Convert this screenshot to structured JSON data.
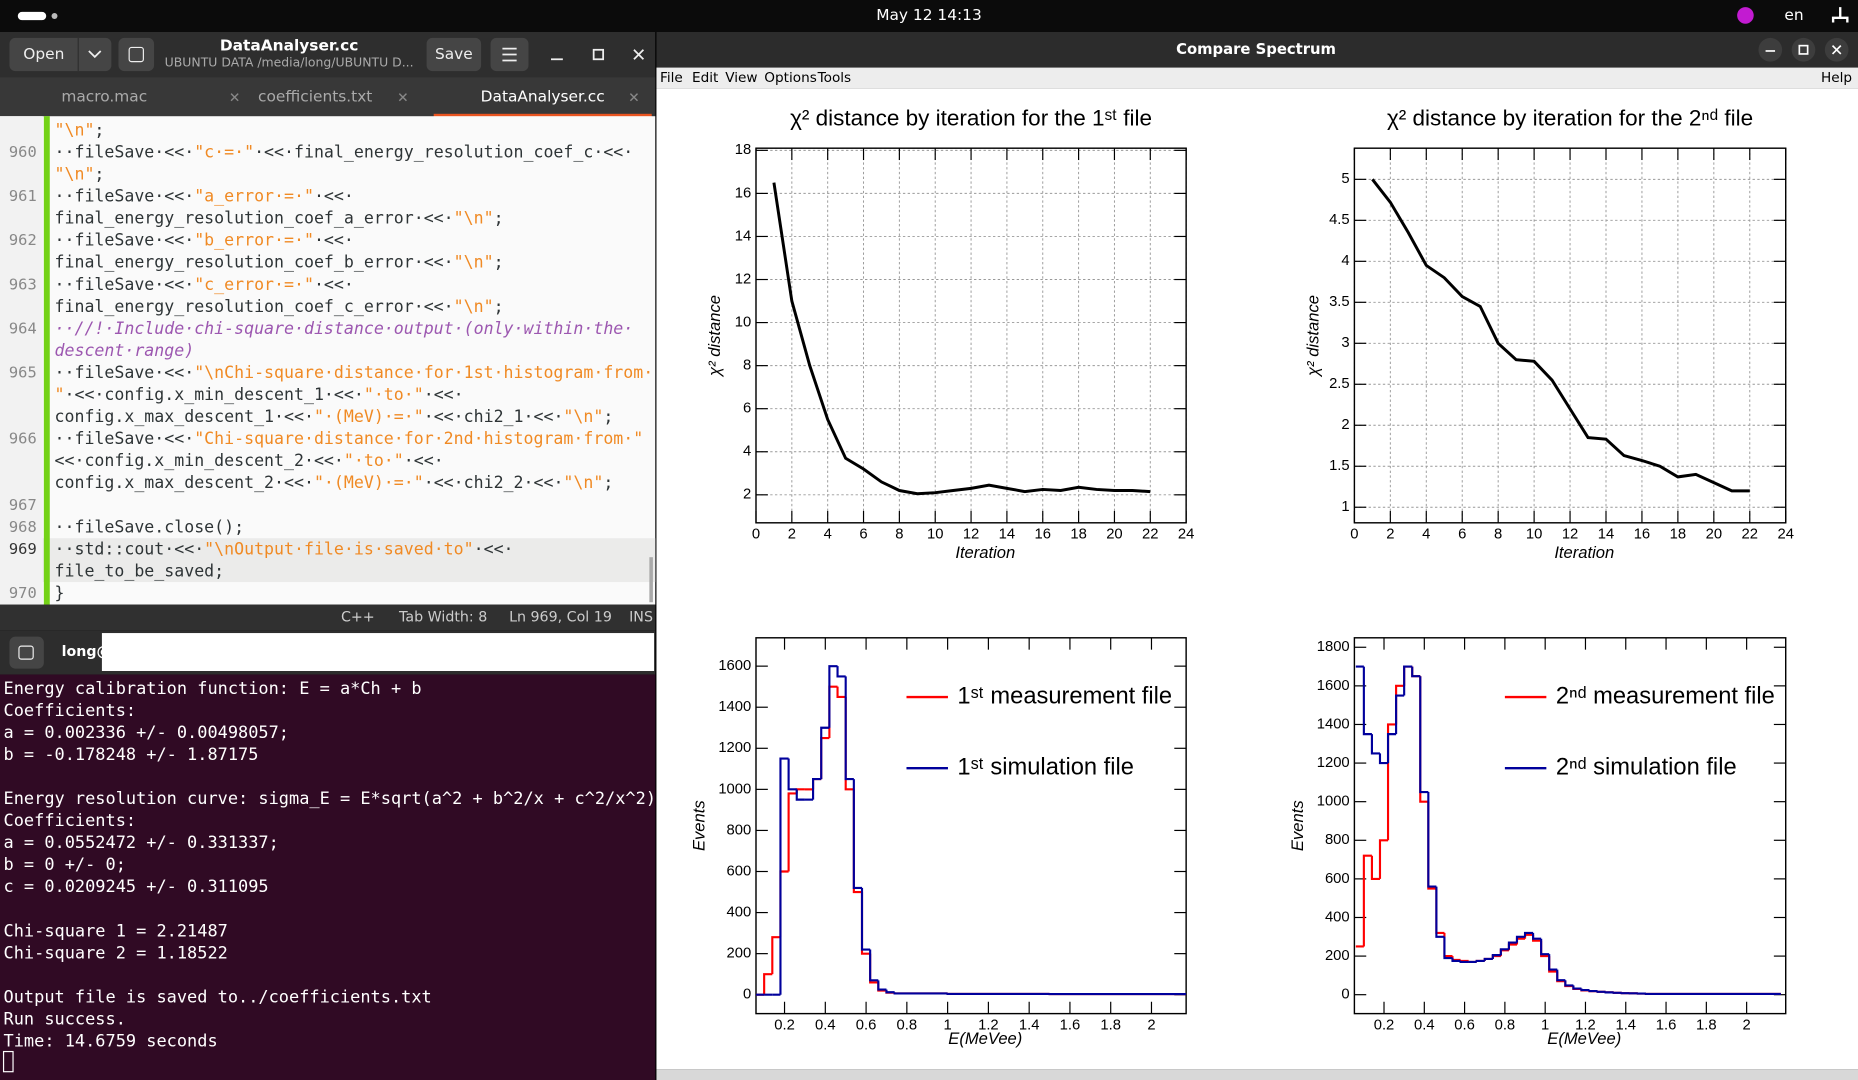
{
  "topbar": {
    "date": "May 12  14:13",
    "lang": "en"
  },
  "editor": {
    "title": "DataAnalyser.cc",
    "subtitle": "UBUNTU DATA /media/long/UBUNTU D...",
    "open": "Open",
    "save": "Save",
    "tabs": [
      "macro.mac",
      "coefficients.txt",
      "DataAnalyser.cc"
    ],
    "rows": [
      {
        "text": "\"\\n\";"
      },
      {
        "num": "960",
        "text": "··fileSave·<<·\"c·=·\"·<<·final_energy_resolution_coef_c·<<·"
      },
      {
        "text": "\"\\n\";"
      },
      {
        "num": "961",
        "text": "··fileSave·<<·\"a_error·=·\"·<<·"
      },
      {
        "text": "final_energy_resolution_coef_a_error·<<·\"\\n\";"
      },
      {
        "num": "962",
        "text": "··fileSave·<<·\"b_error·=·\"·<<·"
      },
      {
        "text": "final_energy_resolution_coef_b_error·<<·\"\\n\";"
      },
      {
        "num": "963",
        "text": "··fileSave·<<·\"c_error·=·\"·<<·"
      },
      {
        "text": "final_energy_resolution_coef_c_error·<<·\"\\n\";"
      },
      {
        "num": "964",
        "text": "··//!·Include·chi-square·distance·output·(only·within·the·",
        "comment": true
      },
      {
        "text": "descent·range)",
        "comment": true
      },
      {
        "num": "965",
        "text": "··fileSave·<<·\"\\nChi-square·distance·for·1st·histogram·from·"
      },
      {
        "text": "\"·<<·config.x_min_descent_1·<<·\"·to·\"·<<·"
      },
      {
        "text": "config.x_max_descent_1·<<·\"·(MeV)·=·\"·<<·chi2_1·<<·\"\\n\";"
      },
      {
        "num": "966",
        "text": "··fileSave·<<·\"Chi-square·distance·for·2nd·histogram·from·\""
      },
      {
        "text": "<<·config.x_min_descent_2·<<·\"·to·\"·<<·"
      },
      {
        "text": "config.x_max_descent_2·<<·\"·(MeV)·=·\"·<<·chi2_2·<<·\"\\n\";"
      },
      {
        "num": "967"
      },
      {
        "num": "968",
        "text": "··fileSave.close();"
      },
      {
        "num": "969",
        "text": "··std::cout·<<·\"\\nOutput·file·is·saved·to\"·<<·",
        "current": true
      },
      {
        "text": "file_to_be_saved;",
        "current": true
      },
      {
        "num": "970",
        "text": "}"
      }
    ],
    "status": [
      "C++",
      "Tab Width: 8",
      "Ln 969, Col 19",
      "INS"
    ]
  },
  "terminal": {
    "prompt": "long@",
    "blocks": [
      [
        "Energy calibration function: E = a*Ch + b",
        "Coefficients:",
        "a = 0.002336 +/- 0.00498057;",
        "b = -0.178248 +/- 1.87175"
      ],
      [
        "Energy resolution curve: sigma_E = E*sqrt(a^2 + b^2/x + c^2/x^2)",
        "Coefficients:",
        "a = 0.0552472 +/- 0.331337;",
        "b = 0 +/- 0;",
        "c = 0.0209245 +/- 0.311095"
      ],
      [
        "Chi-square 1 = 2.21487",
        "Chi-square 2 = 1.18522"
      ],
      [
        "Output file is saved to../coefficients.txt",
        "Run success.",
        "Time: 14.6759 seconds"
      ]
    ]
  },
  "window": {
    "title": "Compare Spectrum",
    "menu": [
      "File",
      "Edit",
      "View",
      "Options",
      "Tools"
    ],
    "help": "Help"
  },
  "chart_data": [
    {
      "type": "line",
      "title": "χ² distance by iteration for the 1ˢᵗ file",
      "xlabel": "Iteration",
      "ylabel": "χ² distance",
      "x": [
        1,
        2,
        3,
        4,
        5,
        6,
        7,
        8,
        9,
        10,
        11,
        12,
        13,
        14,
        15,
        16,
        17,
        18,
        19,
        20,
        21,
        22
      ],
      "values": [
        16.5,
        11,
        8,
        5.5,
        3.7,
        3.2,
        2.6,
        2.2,
        2.05,
        2.1,
        2.2,
        2.3,
        2.45,
        2.3,
        2.15,
        2.25,
        2.2,
        2.35,
        2.25,
        2.2,
        2.2,
        2.15
      ],
      "color": "#000000",
      "xlim": [
        0,
        24
      ],
      "xticks": [
        0,
        2,
        4,
        6,
        8,
        10,
        12,
        14,
        16,
        18,
        20,
        22,
        24
      ],
      "ylim": [
        0.7,
        18.1
      ],
      "yticks": [
        2,
        4,
        6,
        8,
        10,
        12,
        14,
        16,
        18
      ],
      "grid": true
    },
    {
      "type": "line",
      "title": "χ² distance by iteration for the 2ⁿᵈ file",
      "xlabel": "Iteration",
      "ylabel": "χ² distance",
      "x": [
        1,
        2,
        3,
        4,
        5,
        6,
        7,
        8,
        9,
        10,
        11,
        12,
        13,
        14,
        15,
        16,
        17,
        18,
        19,
        20,
        21,
        22
      ],
      "values": [
        5,
        4.72,
        4.35,
        3.95,
        3.8,
        3.57,
        3.45,
        3.0,
        2.8,
        2.78,
        2.55,
        2.2,
        1.85,
        1.83,
        1.63,
        1.57,
        1.5,
        1.37,
        1.4,
        1.3,
        1.2,
        1.2
      ],
      "color": "#000000",
      "xlim": [
        0,
        24
      ],
      "xticks": [
        0,
        2,
        4,
        6,
        8,
        10,
        12,
        14,
        16,
        18,
        20,
        22,
        24
      ],
      "ylim": [
        0.81,
        5.38
      ],
      "yticks": [
        1,
        1.5,
        2,
        2.5,
        3,
        3.5,
        4,
        4.5,
        5
      ],
      "grid": true
    },
    {
      "type": "histogram",
      "xlabel": "E(MeVee)",
      "ylabel": "Events",
      "legend": "upper right",
      "bins": [
        0.06,
        0.1,
        0.14,
        0.18,
        0.22,
        0.26,
        0.3,
        0.34,
        0.38,
        0.42,
        0.46,
        0.5,
        0.54,
        0.58,
        0.62,
        0.66,
        0.7,
        0.74,
        1.0,
        1.5,
        2.17
      ],
      "series": [
        {
          "name": "1ˢᵗ measurement file",
          "color": "#ff0000",
          "values": [
            0,
            100,
            280,
            600,
            980,
            1000,
            1000,
            1050,
            1250,
            1500,
            1450,
            1000,
            500,
            200,
            60,
            20,
            10,
            6,
            4,
            3
          ]
        },
        {
          "name": "1ˢᵗ simulation file",
          "color": "#00009c",
          "values": [
            0,
            0,
            0,
            1150,
            1000,
            950,
            950,
            1050,
            1300,
            1600,
            1550,
            1050,
            520,
            220,
            70,
            25,
            12,
            6,
            4,
            3
          ]
        }
      ],
      "xlim": [
        0.06,
        2.17
      ],
      "xticks": [
        0.2,
        0.4,
        0.6,
        0.8,
        1,
        1.2,
        1.4,
        1.6,
        1.8,
        2
      ],
      "ylim": [
        -92,
        1738
      ],
      "yticks": [
        0,
        200,
        400,
        600,
        800,
        1000,
        1200,
        1400,
        1600
      ]
    },
    {
      "type": "histogram",
      "xlabel": "E(MeVee)",
      "ylabel": "Events",
      "legend": "upper right",
      "bins": [
        0.06,
        0.1,
        0.14,
        0.18,
        0.22,
        0.26,
        0.3,
        0.34,
        0.38,
        0.42,
        0.46,
        0.5,
        0.54,
        0.58,
        0.62,
        0.66,
        0.7,
        0.74,
        0.78,
        0.82,
        0.86,
        0.9,
        0.94,
        0.98,
        1.02,
        1.06,
        1.1,
        1.14,
        1.18,
        1.22,
        1.26,
        1.3,
        1.34,
        1.38,
        1.42,
        1.46,
        1.5,
        2.17
      ],
      "series": [
        {
          "name": "2ⁿᵈ measurement file",
          "color": "#ff0000",
          "values": [
            250,
            720,
            600,
            800,
            1400,
            1600,
            1700,
            1650,
            1000,
            550,
            320,
            200,
            180,
            175,
            170,
            175,
            185,
            200,
            230,
            260,
            290,
            310,
            280,
            200,
            120,
            70,
            45,
            30,
            22,
            18,
            15,
            12,
            10,
            8,
            7,
            6,
            4
          ]
        },
        {
          "name": "2ⁿᵈ simulation file",
          "color": "#00009c",
          "values": [
            1700,
            1350,
            1250,
            1200,
            1350,
            1550,
            1700,
            1650,
            1050,
            560,
            300,
            190,
            175,
            170,
            170,
            175,
            185,
            205,
            235,
            270,
            300,
            320,
            290,
            210,
            130,
            75,
            48,
            32,
            24,
            19,
            15,
            12,
            10,
            8,
            7,
            6,
            4
          ]
        }
      ],
      "xlim": [
        0.053,
        2.194
      ],
      "xticks": [
        0.2,
        0.4,
        0.6,
        0.8,
        1,
        1.2,
        1.4,
        1.6,
        1.8,
        2
      ],
      "ylim": [
        -98,
        1849
      ],
      "yticks": [
        0,
        200,
        400,
        600,
        800,
        1000,
        1200,
        1400,
        1600,
        1800
      ]
    }
  ]
}
